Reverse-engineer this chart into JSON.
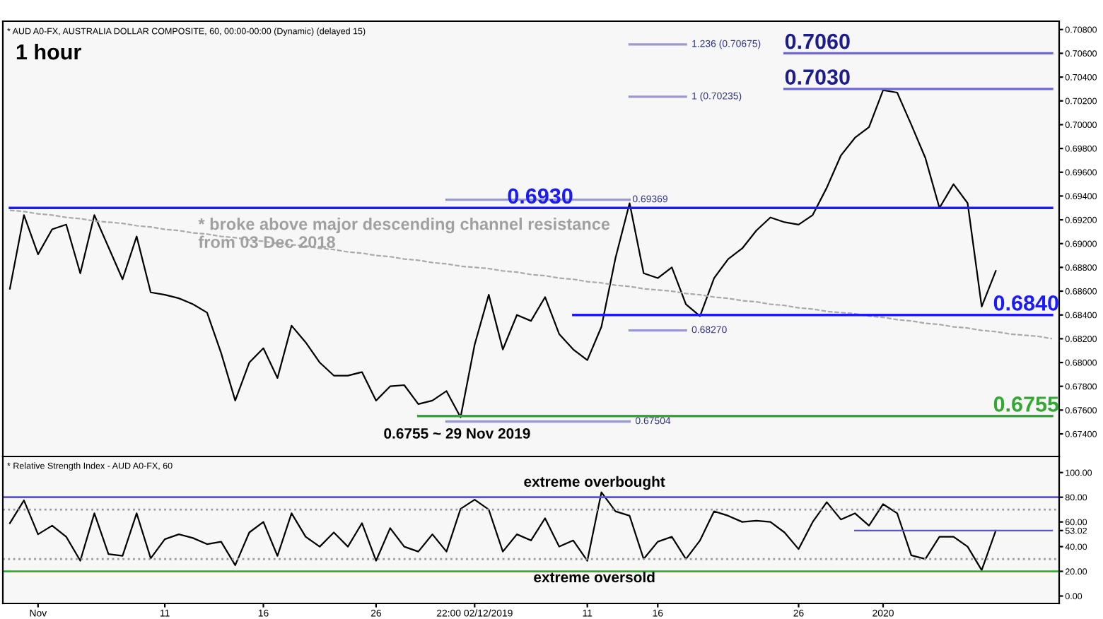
{
  "chart_data": [
    {
      "type": "line",
      "title": "1 hour",
      "subtitle": "* AUD A0-FX, AUSTRALIA DOLLAR COMPOSITE, 60, 00:00-00:00 (Dynamic) (delayed 15)",
      "categories": [
        null,
        null,
        null,
        null,
        null,
        null,
        null,
        null,
        null,
        null,
        null,
        null,
        null,
        null,
        null,
        null,
        null,
        null,
        null,
        null,
        null,
        null,
        null,
        null,
        null,
        null,
        null,
        null,
        null,
        null,
        null,
        null,
        null,
        null,
        null,
        null,
        null,
        null,
        null,
        null,
        null,
        null,
        null,
        null,
        null,
        null,
        null,
        null,
        null,
        null,
        null,
        null,
        null,
        null,
        null,
        null,
        null,
        null,
        null,
        null,
        null,
        null,
        null,
        null,
        null,
        null,
        null,
        null,
        null,
        null,
        null,
        null,
        null,
        null,
        null
      ],
      "ylim": [
        0.6721,
        0.7087
      ],
      "tick_labels": "y",
      "yticks": [
        {
          "value": 0.674,
          "label": "0.67400"
        },
        {
          "value": 0.676,
          "label": "0.67600"
        },
        {
          "value": 0.678,
          "label": "0.67800"
        },
        {
          "value": 0.68,
          "label": "0.68000"
        },
        {
          "value": 0.682,
          "label": "0.68200"
        },
        {
          "value": 0.684,
          "label": "0.68400"
        },
        {
          "value": 0.686,
          "label": "0.68600"
        },
        {
          "value": 0.688,
          "label": "0.68800"
        },
        {
          "value": 0.69,
          "label": "0.69000"
        },
        {
          "value": 0.692,
          "label": "0.69200"
        },
        {
          "value": 0.694,
          "label": "0.69400"
        },
        {
          "value": 0.696,
          "label": "0.69600"
        },
        {
          "value": 0.698,
          "label": "0.69800"
        },
        {
          "value": 0.7,
          "label": "0.70000"
        },
        {
          "value": 0.702,
          "label": "0.70200"
        },
        {
          "value": 0.704,
          "label": "0.70400"
        },
        {
          "value": 0.706,
          "label": "0.70600"
        },
        {
          "value": 0.708,
          "label": "0.70800"
        }
      ],
      "series": [
        {
          "color": "#000000",
          "values": [
            0.6862,
            0.6924,
            0.6891,
            0.6912,
            0.6916,
            0.6875,
            0.6924,
            0.6897,
            0.687,
            0.6906,
            0.6859,
            0.6857,
            0.6854,
            0.6849,
            0.6842,
            0.6808,
            0.6768,
            0.68,
            0.6812,
            0.6787,
            0.6831,
            0.6817,
            0.68,
            0.6789,
            0.6789,
            0.6792,
            0.6768,
            0.678,
            0.6781,
            0.6765,
            0.6768,
            0.6776,
            0.6754,
            0.6815,
            0.6857,
            0.6811,
            0.684,
            0.6835,
            0.6855,
            0.6824,
            0.6811,
            0.6802,
            0.683,
            0.6888,
            0.6934,
            0.6875,
            0.6871,
            0.688,
            0.6849,
            0.6839,
            0.6871,
            0.6887,
            0.6896,
            0.6911,
            0.6922,
            0.6918,
            0.6916,
            0.6924,
            0.6947,
            0.6974,
            0.6989,
            0.6998,
            0.7029,
            0.7027,
            0.7,
            0.6972,
            0.693,
            0.695,
            0.6934,
            0.6847,
            0.6877,
            null,
            null,
            null,
            null
          ]
        },
        {
          "color": "#aaaaaa",
          "line_style": "dashed",
          "values": [
            0.6928,
            0.6927,
            0.6925,
            0.6924,
            0.6922,
            0.6921,
            0.6919,
            0.6918,
            0.6917,
            0.6915,
            0.6914,
            0.6912,
            0.6911,
            0.6909,
            0.6908,
            0.6906,
            0.6905,
            0.6903,
            0.6902,
            0.69,
            0.6899,
            0.6898,
            0.6896,
            0.6895,
            0.6893,
            0.6892,
            0.689,
            0.6889,
            0.6887,
            0.6886,
            0.6884,
            0.6883,
            0.6881,
            0.688,
            0.6879,
            0.6877,
            0.6876,
            0.6874,
            0.6873,
            0.6871,
            0.687,
            0.6868,
            0.6867,
            0.6865,
            0.6864,
            0.6862,
            0.6861,
            0.686,
            0.6858,
            0.6857,
            0.6855,
            0.6854,
            0.6852,
            0.6851,
            0.6849,
            0.6848,
            0.6846,
            0.6845,
            0.6843,
            0.6842,
            0.6841,
            0.6839,
            0.6838,
            0.6836,
            0.6835,
            0.6833,
            0.6832,
            0.683,
            0.6829,
            0.6827,
            0.6826,
            0.6824,
            0.6823,
            0.6822,
            0.682
          ]
        },
        {
          "name": "0.7060",
          "color": "#6a6ad0",
          "values": [
            null,
            null,
            null,
            null,
            null,
            null,
            null,
            null,
            null,
            null,
            null,
            null,
            null,
            null,
            null,
            null,
            null,
            null,
            null,
            null,
            null,
            null,
            null,
            null,
            null,
            null,
            null,
            null,
            null,
            null,
            null,
            null,
            null,
            null,
            null,
            null,
            null,
            null,
            null,
            null,
            null,
            null,
            null,
            null,
            null,
            null,
            null,
            null,
            null,
            null,
            null,
            null,
            null,
            null,
            null,
            0.706,
            0.706,
            0.706,
            0.706,
            0.706,
            0.706,
            0.706,
            0.706,
            0.706,
            0.706,
            0.706,
            0.706,
            0.706,
            0.706,
            0.706,
            0.706,
            0.706,
            0.706,
            0.706,
            0.706
          ]
        },
        {
          "name": "0.7030",
          "color": "#6a6ad0",
          "values": [
            null,
            null,
            null,
            null,
            null,
            null,
            null,
            null,
            null,
            null,
            null,
            null,
            null,
            null,
            null,
            null,
            null,
            null,
            null,
            null,
            null,
            null,
            null,
            null,
            null,
            null,
            null,
            null,
            null,
            null,
            null,
            null,
            null,
            null,
            null,
            null,
            null,
            null,
            null,
            null,
            null,
            null,
            null,
            null,
            null,
            null,
            null,
            null,
            null,
            null,
            null,
            null,
            null,
            null,
            null,
            0.703,
            0.703,
            0.703,
            0.703,
            0.703,
            0.703,
            0.703,
            0.703,
            0.703,
            0.703,
            0.703,
            0.703,
            0.703,
            0.703,
            0.703,
            0.703,
            0.703,
            0.703,
            0.703,
            0.703
          ]
        },
        {
          "name": "0.6930",
          "color": "#1a1aff",
          "values": [
            0.693,
            0.693,
            0.693,
            0.693,
            0.693,
            0.693,
            0.693,
            0.693,
            0.693,
            0.693,
            0.693,
            0.693,
            0.693,
            0.693,
            0.693,
            0.693,
            0.693,
            0.693,
            0.693,
            0.693,
            0.693,
            0.693,
            0.693,
            0.693,
            0.693,
            0.693,
            0.693,
            0.693,
            0.693,
            0.693,
            0.693,
            0.693,
            0.693,
            0.693,
            0.693,
            0.693,
            0.693,
            0.693,
            0.693,
            0.693,
            0.693,
            0.693,
            0.693,
            0.693,
            0.693,
            0.693,
            0.693,
            0.693,
            0.693,
            0.693,
            0.693,
            0.693,
            0.693,
            0.693,
            0.693,
            0.693,
            0.693,
            0.693,
            0.693,
            0.693,
            0.693,
            0.693,
            0.693,
            0.693,
            0.693,
            0.693,
            0.693,
            0.693,
            0.693,
            0.693,
            0.693,
            0.693,
            0.693,
            0.693,
            0.693
          ]
        },
        {
          "name": "0.6840",
          "color": "#1a1aff",
          "values": [
            null,
            null,
            null,
            null,
            null,
            null,
            null,
            null,
            null,
            null,
            null,
            null,
            null,
            null,
            null,
            null,
            null,
            null,
            null,
            null,
            null,
            null,
            null,
            null,
            null,
            null,
            null,
            null,
            null,
            null,
            null,
            null,
            null,
            null,
            null,
            null,
            null,
            null,
            null,
            null,
            0.684,
            0.684,
            0.684,
            0.684,
            0.684,
            0.684,
            0.684,
            0.684,
            0.684,
            0.684,
            0.684,
            0.684,
            0.684,
            0.684,
            0.684,
            0.684,
            0.684,
            0.684,
            0.684,
            0.684,
            0.684,
            0.684,
            0.684,
            0.684,
            0.684,
            0.684,
            0.684,
            0.684,
            0.684,
            0.684,
            0.684,
            0.684,
            0.684,
            0.684,
            0.684
          ]
        },
        {
          "name": "0.6755",
          "color": "#33a833",
          "values": [
            null,
            null,
            null,
            null,
            null,
            null,
            null,
            null,
            null,
            null,
            null,
            null,
            null,
            null,
            null,
            null,
            null,
            null,
            null,
            null,
            null,
            null,
            null,
            null,
            null,
            null,
            null,
            null,
            null,
            0.6755,
            0.6755,
            0.6755,
            0.6755,
            0.6755,
            0.6755,
            0.6755,
            0.6755,
            0.6755,
            0.6755,
            0.6755,
            0.6755,
            0.6755,
            0.6755,
            0.6755,
            0.6755,
            0.6755,
            0.6755,
            0.6755,
            0.6755,
            0.6755,
            0.6755,
            0.6755,
            0.6755,
            0.6755,
            0.6755,
            0.6755,
            0.6755,
            0.6755,
            0.6755,
            0.6755,
            0.6755,
            0.6755,
            0.6755,
            0.6755,
            0.6755,
            0.6755,
            0.6755,
            0.6755,
            0.6755,
            0.6755,
            0.6755,
            0.6755,
            0.6755,
            0.6755,
            0.6755
          ]
        },
        {
          "name": "1.236 (0.70675)",
          "color": "#9a9ad0",
          "values": [
            null,
            null,
            null,
            null,
            null,
            null,
            null,
            null,
            null,
            null,
            null,
            null,
            null,
            null,
            null,
            null,
            null,
            null,
            null,
            null,
            null,
            null,
            null,
            null,
            null,
            null,
            null,
            null,
            null,
            null,
            null,
            null,
            null,
            null,
            null,
            null,
            null,
            null,
            null,
            null,
            null,
            null,
            null,
            null,
            0.70675,
            0.70675,
            0.70675,
            0.70675,
            0.70675,
            null,
            null,
            null,
            null,
            null,
            null,
            null,
            null,
            null,
            null,
            null,
            null,
            null,
            null,
            null,
            null,
            null,
            null,
            null,
            null,
            null,
            null,
            null,
            null,
            null,
            null
          ]
        },
        {
          "name": "1 (0.70235)",
          "color": "#9a9ad0",
          "values": [
            null,
            null,
            null,
            null,
            null,
            null,
            null,
            null,
            null,
            null,
            null,
            null,
            null,
            null,
            null,
            null,
            null,
            null,
            null,
            null,
            null,
            null,
            null,
            null,
            null,
            null,
            null,
            null,
            null,
            null,
            null,
            null,
            null,
            null,
            null,
            null,
            null,
            null,
            null,
            null,
            null,
            null,
            null,
            null,
            0.70235,
            0.70235,
            0.70235,
            0.70235,
            0.70235,
            null,
            null,
            null,
            null,
            null,
            null,
            null,
            null,
            null,
            null,
            null,
            null,
            null,
            null,
            null,
            null,
            null,
            null,
            null,
            null,
            null,
            null,
            null,
            null,
            null,
            null
          ]
        },
        {
          "name": "0.69369",
          "color": "#9a9ad0",
          "values": [
            null,
            null,
            null,
            null,
            null,
            null,
            null,
            null,
            null,
            null,
            null,
            null,
            null,
            null,
            null,
            null,
            null,
            null,
            null,
            null,
            null,
            null,
            null,
            null,
            null,
            null,
            null,
            null,
            null,
            null,
            null,
            0.69369,
            0.69369,
            0.69369,
            0.69369,
            0.69369,
            0.69369,
            0.69369,
            0.69369,
            0.69369,
            0.69369,
            0.69369,
            0.69369,
            0.69369,
            0.69369,
            null,
            null,
            null,
            null,
            null,
            null,
            null,
            null,
            null,
            null,
            null,
            null,
            null,
            null,
            null,
            null,
            null,
            null,
            null,
            null,
            null,
            null,
            null,
            null,
            null,
            null,
            null,
            null,
            null,
            null
          ]
        },
        {
          "name": "0.68270",
          "color": "#9a9ad0",
          "values": [
            null,
            null,
            null,
            null,
            null,
            null,
            null,
            null,
            null,
            null,
            null,
            null,
            null,
            null,
            null,
            null,
            null,
            null,
            null,
            null,
            null,
            null,
            null,
            null,
            null,
            null,
            null,
            null,
            null,
            null,
            null,
            null,
            null,
            null,
            null,
            null,
            null,
            null,
            null,
            null,
            null,
            null,
            null,
            null,
            0.6827,
            0.6827,
            0.6827,
            0.6827,
            0.6827,
            null,
            null,
            null,
            null,
            null,
            null,
            null,
            null,
            null,
            null,
            null,
            null,
            null,
            null,
            null,
            null,
            null,
            null,
            null,
            null,
            null,
            null,
            null,
            null,
            null,
            null
          ]
        },
        {
          "name": "0.67504",
          "color": "#9a9ad0",
          "values": [
            null,
            null,
            null,
            null,
            null,
            null,
            null,
            null,
            null,
            null,
            null,
            null,
            null,
            null,
            null,
            null,
            null,
            null,
            null,
            null,
            null,
            null,
            null,
            null,
            null,
            null,
            null,
            null,
            null,
            null,
            null,
            0.67504,
            0.67504,
            0.67504,
            0.67504,
            0.67504,
            0.67504,
            0.67504,
            0.67504,
            0.67504,
            0.67504,
            0.67504,
            0.67504,
            0.67504,
            0.67504,
            null,
            null,
            null,
            null,
            null,
            null,
            null,
            null,
            null,
            null,
            null,
            null,
            null,
            null,
            null,
            null,
            null,
            null,
            null,
            null,
            null,
            null,
            null,
            null,
            null,
            null,
            null,
            null,
            null,
            null
          ]
        }
      ],
      "annotations": [
        "* broke above major descending channel resistance\nfrom 03 Dec 2018",
        "0.6755 ~ 29 Nov 2019"
      ]
    },
    {
      "type": "line",
      "title": "* Relative Strength Index - AUD A0-FX, 60",
      "categories": [
        null,
        null,
        "Nov",
        null,
        null,
        null,
        null,
        null,
        null,
        null,
        null,
        "11",
        null,
        null,
        null,
        null,
        null,
        null,
        "16",
        null,
        null,
        null,
        null,
        null,
        null,
        null,
        "26",
        null,
        null,
        null,
        null,
        null,
        null,
        "22:00 02/12/2019",
        null,
        null,
        null,
        null,
        null,
        null,
        null,
        "11",
        null,
        null,
        null,
        null,
        "16",
        null,
        null,
        null,
        null,
        null,
        null,
        null,
        null,
        null,
        "26",
        null,
        null,
        null,
        null,
        null,
        "2020",
        null,
        null,
        null,
        null,
        null,
        null,
        null,
        null,
        null,
        null,
        null,
        null
      ],
      "ylim": [
        -6,
        113
      ],
      "yticks": [
        {
          "value": 0,
          "label": "0.00"
        },
        {
          "value": 20,
          "label": "20.00"
        },
        {
          "value": 40,
          "label": "40.00"
        },
        {
          "value": 53.02,
          "label": "53.02"
        },
        {
          "value": 60,
          "label": "60.00"
        },
        {
          "value": 80,
          "label": "80.00"
        },
        {
          "value": 100,
          "label": "100.00"
        }
      ],
      "ref_lines": [
        {
          "axis": "y",
          "value": 80,
          "color": "#5555cc"
        },
        {
          "axis": "y",
          "value": 20,
          "color": "#33aa33"
        },
        {
          "axis": "y",
          "value": 70,
          "color": "#999999",
          "line_style": "dotted"
        },
        {
          "axis": "y",
          "value": 30,
          "color": "#999999",
          "line_style": "dotted"
        }
      ],
      "series": [
        {
          "color": "#000000",
          "values": [
            59,
            77.5,
            50,
            57,
            48,
            28.6,
            67,
            34,
            32.5,
            67,
            30.5,
            46,
            50,
            47,
            42,
            44,
            25,
            51.5,
            60,
            32.5,
            67,
            48,
            40,
            51.5,
            40,
            59,
            28.6,
            55,
            40,
            36,
            50,
            36,
            70.6,
            78,
            70,
            36,
            50,
            45,
            63,
            40,
            45,
            28.6,
            84,
            68.6,
            65,
            30,
            44,
            48,
            30,
            45,
            68.6,
            65,
            60,
            61,
            60,
            51.5,
            38,
            60,
            76,
            62,
            67,
            57,
            74.4,
            67,
            33,
            30,
            48,
            48,
            40,
            21,
            53,
            null,
            null,
            null,
            null
          ]
        },
        {
          "color": "#5555cc",
          "values": [
            null,
            null,
            null,
            null,
            null,
            null,
            null,
            null,
            null,
            null,
            null,
            null,
            null,
            null,
            null,
            null,
            null,
            null,
            null,
            null,
            null,
            null,
            null,
            null,
            null,
            null,
            null,
            null,
            null,
            null,
            null,
            null,
            null,
            null,
            null,
            null,
            null,
            null,
            null,
            null,
            null,
            null,
            null,
            null,
            null,
            null,
            null,
            null,
            null,
            null,
            null,
            null,
            null,
            null,
            null,
            null,
            null,
            null,
            null,
            null,
            53.02,
            53.02,
            53.02,
            53.02,
            53.02,
            53.02,
            53.02,
            53.02,
            53.02,
            53.02,
            53.02,
            53.02,
            53.02,
            53.02,
            53.02
          ]
        }
      ],
      "annotations": [
        "extreme overbought",
        "extreme oversold"
      ]
    }
  ]
}
